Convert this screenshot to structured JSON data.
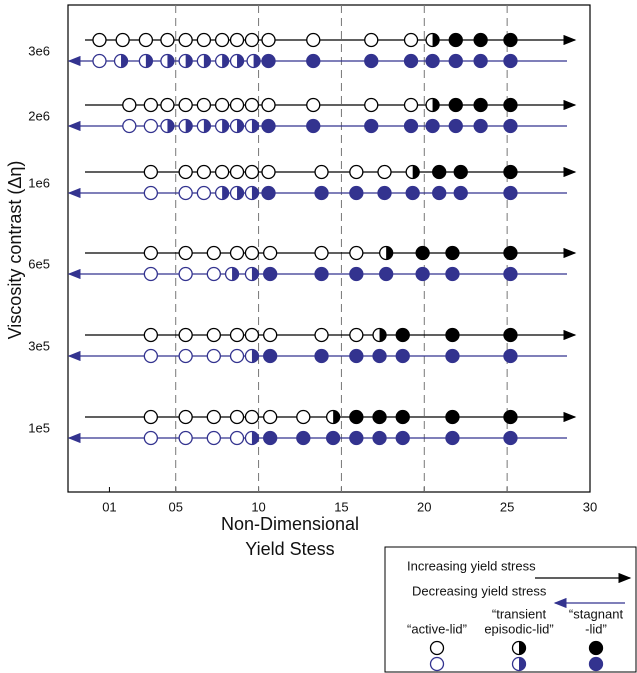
{
  "chart_data": {
    "type": "scatter",
    "xlabel": [
      "Non-Dimensional",
      "Yield Stess"
    ],
    "ylabel": "Viscosity contrast (Δη)",
    "xlim": [
      -1.5,
      30
    ],
    "xticks": [
      {
        "value": 1,
        "label": "01"
      },
      {
        "value": 5,
        "label": "05"
      },
      10,
      15,
      20,
      25,
      30
    ],
    "grid": true,
    "categories": [
      "1e5",
      "3e5",
      "6e5",
      "1e6",
      "2e6",
      "3e6"
    ],
    "states": [
      [
        "“active-lid”"
      ],
      [
        "“transient",
        "episodic-lid”"
      ],
      [
        "“stagnant",
        "-lid”"
      ]
    ],
    "series": [
      {
        "name": "Increasing yield stress",
        "color": "#000000",
        "x": [
          [
            3.5,
            5.6,
            7.3,
            8.7,
            9.6,
            10.7,
            12.7,
            14.5,
            15.9,
            17.3,
            18.7,
            21.7,
            25.2
          ],
          [
            3.5,
            5.6,
            7.3,
            8.7,
            9.6,
            10.7,
            13.8,
            15.9,
            17.3,
            18.7,
            21.7,
            25.2
          ],
          [
            3.5,
            5.6,
            7.3,
            8.7,
            9.6,
            10.7,
            13.8,
            15.9,
            17.7,
            19.9,
            21.7,
            25.2
          ],
          [
            3.5,
            5.6,
            6.7,
            7.8,
            8.7,
            9.6,
            10.6,
            13.8,
            15.9,
            17.6,
            19.3,
            20.9,
            22.2,
            25.2
          ],
          [
            2.2,
            3.5,
            4.5,
            5.6,
            6.7,
            7.8,
            8.7,
            9.6,
            10.6,
            13.3,
            16.8,
            19.2,
            20.5,
            21.9,
            23.4,
            25.2
          ],
          [
            0.4,
            1.8,
            3.2,
            4.5,
            5.6,
            6.7,
            7.8,
            8.7,
            9.6,
            10.6,
            13.3,
            16.8,
            19.2,
            20.5,
            21.9,
            23.4,
            25.2
          ]
        ],
        "state": [
          [
            0,
            0,
            0,
            0,
            0,
            0,
            0,
            1,
            2,
            2,
            2,
            2,
            2
          ],
          [
            0,
            0,
            0,
            0,
            0,
            0,
            0,
            0,
            1,
            2,
            2,
            2
          ],
          [
            0,
            0,
            0,
            0,
            0,
            0,
            0,
            0,
            1,
            2,
            2,
            2
          ],
          [
            0,
            0,
            0,
            0,
            0,
            0,
            0,
            0,
            0,
            0,
            1,
            2,
            2,
            2
          ],
          [
            0,
            0,
            0,
            0,
            0,
            0,
            0,
            0,
            0,
            0,
            0,
            0,
            1,
            2,
            2,
            2
          ],
          [
            0,
            0,
            0,
            0,
            0,
            0,
            0,
            0,
            0,
            0,
            0,
            0,
            0,
            1,
            2,
            2,
            2
          ]
        ]
      },
      {
        "name": "Decreasing yield stress",
        "color": "#33338f",
        "x": [
          [
            3.5,
            5.6,
            7.3,
            8.7,
            9.6,
            10.7,
            12.7,
            14.5,
            15.9,
            17.3,
            18.7,
            21.7,
            25.2
          ],
          [
            3.5,
            5.6,
            7.3,
            8.7,
            9.6,
            10.7,
            13.8,
            15.9,
            17.3,
            18.7,
            21.7,
            25.2
          ],
          [
            3.5,
            5.6,
            7.3,
            8.4,
            9.6,
            10.7,
            13.8,
            15.9,
            17.7,
            19.9,
            21.7,
            25.2
          ],
          [
            3.5,
            5.6,
            6.7,
            7.8,
            8.7,
            9.6,
            10.6,
            13.8,
            15.9,
            17.6,
            19.3,
            20.9,
            22.2,
            25.2
          ],
          [
            2.2,
            3.5,
            4.5,
            5.6,
            6.7,
            7.8,
            8.7,
            9.6,
            10.6,
            13.3,
            16.8,
            19.2,
            20.5,
            21.9,
            23.4,
            25.2
          ],
          [
            0.4,
            1.7,
            3.2,
            4.5,
            5.6,
            6.7,
            7.8,
            8.7,
            9.7,
            10.6,
            13.3,
            16.8,
            19.2,
            20.5,
            21.9,
            23.4,
            25.2
          ]
        ],
        "state": [
          [
            0,
            0,
            0,
            0,
            1,
            2,
            2,
            2,
            2,
            2,
            2,
            2,
            2
          ],
          [
            0,
            0,
            0,
            0,
            1,
            2,
            2,
            2,
            2,
            2,
            2,
            2
          ],
          [
            0,
            0,
            0,
            1,
            1,
            2,
            2,
            2,
            2,
            2,
            2,
            2
          ],
          [
            0,
            0,
            0,
            1,
            1,
            1,
            2,
            2,
            2,
            2,
            2,
            2,
            2,
            2
          ],
          [
            0,
            0,
            1,
            1,
            1,
            1,
            1,
            1,
            2,
            2,
            2,
            2,
            2,
            2,
            2,
            2
          ],
          [
            0,
            1,
            1,
            1,
            1,
            1,
            1,
            1,
            1,
            2,
            2,
            2,
            2,
            2,
            2,
            2,
            2
          ]
        ]
      }
    ]
  }
}
